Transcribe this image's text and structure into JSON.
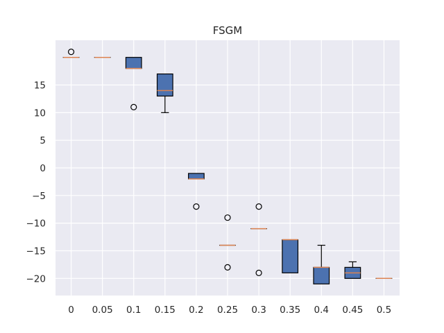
{
  "chart_data": {
    "type": "boxplot",
    "title": "FSGM",
    "xlabel": "",
    "ylabel": "",
    "categories": [
      "0",
      "0.05",
      "0.1",
      "0.15",
      "0.2",
      "0.25",
      "0.3",
      "0.35",
      "0.4",
      "0.45",
      "0.5"
    ],
    "boxes": [
      {
        "q1": 20,
        "median": 20,
        "q3": 20,
        "whisker_low": 20,
        "whisker_high": 20,
        "outliers": [
          21
        ]
      },
      {
        "q1": 20,
        "median": 20,
        "q3": 20,
        "whisker_low": 20,
        "whisker_high": 20,
        "outliers": []
      },
      {
        "q1": 18,
        "median": 18,
        "q3": 20,
        "whisker_low": 18,
        "whisker_high": 20,
        "outliers": [
          11
        ]
      },
      {
        "q1": 13,
        "median": 14,
        "q3": 17,
        "whisker_low": 10,
        "whisker_high": 17,
        "outliers": []
      },
      {
        "q1": -2,
        "median": -2,
        "q3": -1,
        "whisker_low": -2,
        "whisker_high": -1,
        "outliers": [
          -7
        ]
      },
      {
        "q1": -14,
        "median": -14,
        "q3": -14,
        "whisker_low": -14,
        "whisker_high": -14,
        "outliers": [
          -9,
          -18
        ]
      },
      {
        "q1": -11,
        "median": -11,
        "q3": -11,
        "whisker_low": -11,
        "whisker_high": -11,
        "outliers": [
          -7,
          -19
        ]
      },
      {
        "q1": -19,
        "median": -13,
        "q3": -13,
        "whisker_low": -19,
        "whisker_high": -13,
        "outliers": []
      },
      {
        "q1": -21,
        "median": -18,
        "q3": -18,
        "whisker_low": -21,
        "whisker_high": -14,
        "outliers": []
      },
      {
        "q1": -20,
        "median": -19,
        "q3": -18,
        "whisker_low": -20,
        "whisker_high": -17,
        "outliers": []
      },
      {
        "q1": -20,
        "median": -20,
        "q3": -20,
        "whisker_low": -20,
        "whisker_high": -20,
        "outliers": []
      }
    ],
    "yticks": [
      -20,
      -15,
      -10,
      -5,
      0,
      5,
      10,
      15
    ],
    "ylim": [
      -23.1,
      23.1
    ],
    "grid": true,
    "colors": {
      "background": "#eaeaf2",
      "grid": "#ffffff",
      "box_fill": "#4c72b0",
      "box_edge": "#000000",
      "median": "#dd8452",
      "text": "#262626"
    }
  }
}
